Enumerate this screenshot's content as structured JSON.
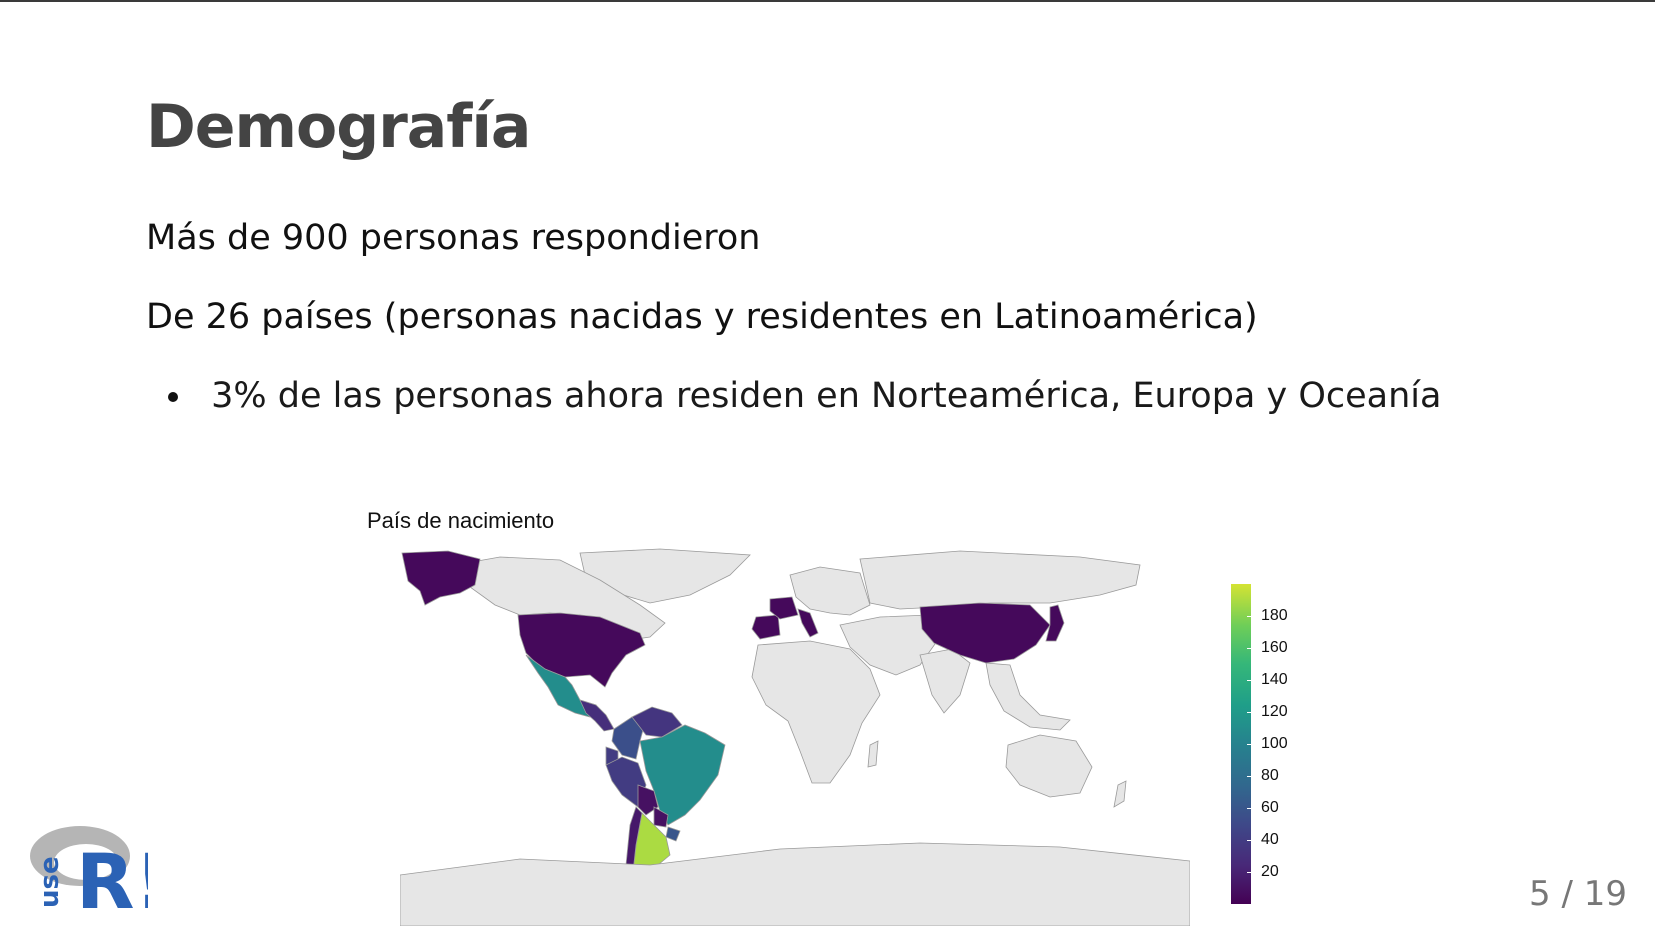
{
  "slide": {
    "title": "Demografía",
    "para1": "Más de 900 personas respondieron",
    "para2": "De 26 países (personas nacidas y residentes en Latinoamérica)",
    "bullets": [
      "3% de las personas ahora residen en Norteamérica, Europa y Oceanía"
    ],
    "page": "5 / 19"
  },
  "chart_data": {
    "type": "heatmap",
    "title": "País de nacimiento",
    "legend": {
      "ticks": [
        20,
        40,
        60,
        80,
        100,
        120,
        140,
        160,
        180
      ],
      "range": [
        0,
        200
      ],
      "placement": "right"
    },
    "colors": {
      "land_default": "#e6e6e6",
      "border": "#9a9a9a",
      "low": "#440154",
      "high": "#d4e333"
    },
    "regions": [
      {
        "name": "Argentina",
        "value": 190
      },
      {
        "name": "Brasil",
        "value": 110
      },
      {
        "name": "México",
        "value": 110
      },
      {
        "name": "Colombia",
        "value": 55
      },
      {
        "name": "Perú",
        "value": 40
      },
      {
        "name": "Venezuela",
        "value": 35
      },
      {
        "name": "Chile",
        "value": 15
      },
      {
        "name": "Bolivia",
        "value": 10
      },
      {
        "name": "Paraguay",
        "value": 10
      },
      {
        "name": "Uruguay",
        "value": 60
      },
      {
        "name": "Ecuador",
        "value": 40
      },
      {
        "name": "Guatemala",
        "value": 30
      },
      {
        "name": "Estados Unidos",
        "value": 5
      },
      {
        "name": "España",
        "value": 5
      },
      {
        "name": "Francia",
        "value": 5
      },
      {
        "name": "Italia",
        "value": 5
      },
      {
        "name": "China",
        "value": 5
      },
      {
        "name": "Japón",
        "value": 5
      }
    ]
  },
  "logo": {
    "icon": "user-logo-icon",
    "text": "useR!"
  }
}
